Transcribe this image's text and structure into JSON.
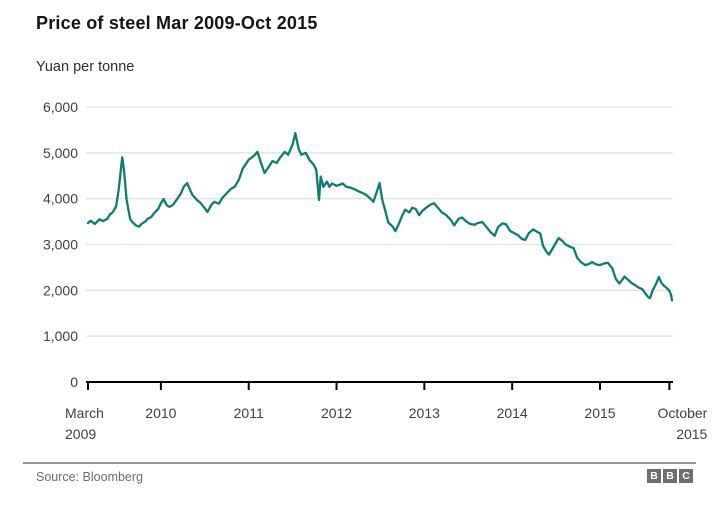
{
  "header": {
    "title": "Price of steel Mar 2009-Oct 2015",
    "subtitle": "Yuan per tonne"
  },
  "footer": {
    "source": "Source: Bloomberg",
    "logo_letters": [
      "B",
      "B",
      "C"
    ]
  },
  "chart_data": {
    "type": "line",
    "title": "Price of steel Mar 2009-Oct 2015",
    "ylabel": "Yuan per tonne",
    "xlabel": "",
    "xlim": [
      2009.17,
      2015.82
    ],
    "ylim": [
      0,
      6000
    ],
    "grid": "horizontal",
    "legend": "none",
    "line_color": "#0f7d72",
    "grid_color": "#e3e3e3",
    "axis_color": "#000000",
    "label_color": "#404040",
    "y_ticks": [
      {
        "v": 0,
        "label": "0"
      },
      {
        "v": 1000,
        "label": "1,000"
      },
      {
        "v": 2000,
        "label": "2,000"
      },
      {
        "v": 3000,
        "label": "3,000"
      },
      {
        "v": 4000,
        "label": "4,000"
      },
      {
        "v": 5000,
        "label": "5,000"
      },
      {
        "v": 6000,
        "label": "6,000"
      }
    ],
    "x_ticks": [
      {
        "v": 2009.17,
        "label": [
          "March",
          "2009"
        ],
        "anchor": "start",
        "dx": -23
      },
      {
        "v": 2010,
        "label": [
          "2010"
        ],
        "anchor": "middle",
        "dx": 0
      },
      {
        "v": 2011,
        "label": [
          "2011"
        ],
        "anchor": "middle",
        "dx": 0
      },
      {
        "v": 2012,
        "label": [
          "2012"
        ],
        "anchor": "middle",
        "dx": 0
      },
      {
        "v": 2013,
        "label": [
          "2013"
        ],
        "anchor": "middle",
        "dx": 0
      },
      {
        "v": 2014,
        "label": [
          "2014"
        ],
        "anchor": "middle",
        "dx": 0
      },
      {
        "v": 2015,
        "label": [
          "2015"
        ],
        "anchor": "middle",
        "dx": 0
      },
      {
        "v": 2015.79,
        "label": [
          "October",
          "2015"
        ],
        "anchor": "end",
        "dx": 38
      }
    ],
    "series": [
      {
        "name": "Price of steel (yuan per tonne)",
        "points": [
          [
            2009.17,
            3470
          ],
          [
            2009.2,
            3520
          ],
          [
            2009.25,
            3450
          ],
          [
            2009.3,
            3550
          ],
          [
            2009.34,
            3510
          ],
          [
            2009.39,
            3560
          ],
          [
            2009.42,
            3660
          ],
          [
            2009.45,
            3700
          ],
          [
            2009.49,
            3830
          ],
          [
            2009.52,
            4200
          ],
          [
            2009.56,
            4900
          ],
          [
            2009.58,
            4620
          ],
          [
            2009.61,
            3980
          ],
          [
            2009.65,
            3550
          ],
          [
            2009.68,
            3480
          ],
          [
            2009.72,
            3410
          ],
          [
            2009.75,
            3390
          ],
          [
            2009.78,
            3450
          ],
          [
            2009.82,
            3500
          ],
          [
            2009.85,
            3560
          ],
          [
            2009.89,
            3600
          ],
          [
            2009.93,
            3700
          ],
          [
            2009.97,
            3780
          ],
          [
            2010.0,
            3900
          ],
          [
            2010.03,
            3990
          ],
          [
            2010.07,
            3850
          ],
          [
            2010.1,
            3820
          ],
          [
            2010.14,
            3870
          ],
          [
            2010.18,
            3980
          ],
          [
            2010.23,
            4120
          ],
          [
            2010.26,
            4260
          ],
          [
            2010.3,
            4340
          ],
          [
            2010.33,
            4200
          ],
          [
            2010.36,
            4080
          ],
          [
            2010.41,
            3970
          ],
          [
            2010.45,
            3910
          ],
          [
            2010.5,
            3790
          ],
          [
            2010.53,
            3710
          ],
          [
            2010.58,
            3880
          ],
          [
            2010.61,
            3930
          ],
          [
            2010.66,
            3890
          ],
          [
            2010.7,
            4020
          ],
          [
            2010.75,
            4120
          ],
          [
            2010.8,
            4220
          ],
          [
            2010.84,
            4260
          ],
          [
            2010.89,
            4420
          ],
          [
            2010.93,
            4650
          ],
          [
            2011.0,
            4850
          ],
          [
            2011.05,
            4920
          ],
          [
            2011.1,
            5020
          ],
          [
            2011.14,
            4780
          ],
          [
            2011.18,
            4560
          ],
          [
            2011.23,
            4700
          ],
          [
            2011.27,
            4820
          ],
          [
            2011.32,
            4780
          ],
          [
            2011.36,
            4900
          ],
          [
            2011.41,
            5020
          ],
          [
            2011.45,
            4960
          ],
          [
            2011.5,
            5180
          ],
          [
            2011.53,
            5430
          ],
          [
            2011.57,
            5070
          ],
          [
            2011.6,
            4960
          ],
          [
            2011.65,
            5000
          ],
          [
            2011.69,
            4850
          ],
          [
            2011.74,
            4740
          ],
          [
            2011.77,
            4630
          ],
          [
            2011.8,
            3970
          ],
          [
            2011.82,
            4480
          ],
          [
            2011.85,
            4260
          ],
          [
            2011.89,
            4370
          ],
          [
            2011.92,
            4260
          ],
          [
            2011.95,
            4330
          ],
          [
            2012.0,
            4280
          ],
          [
            2012.03,
            4300
          ],
          [
            2012.07,
            4330
          ],
          [
            2012.11,
            4260
          ],
          [
            2012.16,
            4240
          ],
          [
            2012.2,
            4210
          ],
          [
            2012.25,
            4160
          ],
          [
            2012.3,
            4120
          ],
          [
            2012.34,
            4080
          ],
          [
            2012.39,
            3990
          ],
          [
            2012.42,
            3930
          ],
          [
            2012.45,
            4100
          ],
          [
            2012.49,
            4340
          ],
          [
            2012.52,
            3980
          ],
          [
            2012.56,
            3700
          ],
          [
            2012.59,
            3480
          ],
          [
            2012.64,
            3390
          ],
          [
            2012.67,
            3290
          ],
          [
            2012.72,
            3500
          ],
          [
            2012.75,
            3640
          ],
          [
            2012.78,
            3760
          ],
          [
            2012.83,
            3700
          ],
          [
            2012.86,
            3800
          ],
          [
            2012.9,
            3780
          ],
          [
            2012.94,
            3640
          ],
          [
            2012.98,
            3740
          ],
          [
            2013.02,
            3800
          ],
          [
            2013.07,
            3870
          ],
          [
            2013.11,
            3900
          ],
          [
            2013.16,
            3790
          ],
          [
            2013.2,
            3700
          ],
          [
            2013.25,
            3640
          ],
          [
            2013.3,
            3540
          ],
          [
            2013.34,
            3420
          ],
          [
            2013.39,
            3560
          ],
          [
            2013.43,
            3590
          ],
          [
            2013.48,
            3500
          ],
          [
            2013.52,
            3450
          ],
          [
            2013.57,
            3430
          ],
          [
            2013.61,
            3470
          ],
          [
            2013.66,
            3490
          ],
          [
            2013.7,
            3400
          ],
          [
            2013.75,
            3280
          ],
          [
            2013.8,
            3190
          ],
          [
            2013.84,
            3380
          ],
          [
            2013.89,
            3460
          ],
          [
            2013.93,
            3440
          ],
          [
            2013.98,
            3290
          ],
          [
            2014.02,
            3250
          ],
          [
            2014.07,
            3200
          ],
          [
            2014.11,
            3120
          ],
          [
            2014.15,
            3100
          ],
          [
            2014.19,
            3250
          ],
          [
            2014.24,
            3330
          ],
          [
            2014.28,
            3280
          ],
          [
            2014.32,
            3240
          ],
          [
            2014.35,
            2980
          ],
          [
            2014.39,
            2840
          ],
          [
            2014.42,
            2780
          ],
          [
            2014.45,
            2880
          ],
          [
            2014.49,
            3010
          ],
          [
            2014.53,
            3140
          ],
          [
            2014.57,
            3080
          ],
          [
            2014.61,
            3000
          ],
          [
            2014.66,
            2950
          ],
          [
            2014.7,
            2920
          ],
          [
            2014.74,
            2710
          ],
          [
            2014.78,
            2620
          ],
          [
            2014.83,
            2550
          ],
          [
            2014.88,
            2580
          ],
          [
            2014.91,
            2620
          ],
          [
            2014.95,
            2570
          ],
          [
            2015.0,
            2550
          ],
          [
            2015.05,
            2590
          ],
          [
            2015.09,
            2600
          ],
          [
            2015.14,
            2480
          ],
          [
            2015.18,
            2250
          ],
          [
            2015.22,
            2150
          ],
          [
            2015.25,
            2220
          ],
          [
            2015.28,
            2300
          ],
          [
            2015.32,
            2230
          ],
          [
            2015.36,
            2160
          ],
          [
            2015.41,
            2100
          ],
          [
            2015.44,
            2060
          ],
          [
            2015.48,
            2030
          ],
          [
            2015.51,
            1950
          ],
          [
            2015.55,
            1850
          ],
          [
            2015.57,
            1830
          ],
          [
            2015.6,
            2000
          ],
          [
            2015.64,
            2150
          ],
          [
            2015.67,
            2290
          ],
          [
            2015.7,
            2160
          ],
          [
            2015.73,
            2100
          ],
          [
            2015.76,
            2050
          ],
          [
            2015.79,
            1990
          ],
          [
            2015.81,
            1900
          ],
          [
            2015.82,
            1780
          ]
        ]
      }
    ]
  }
}
